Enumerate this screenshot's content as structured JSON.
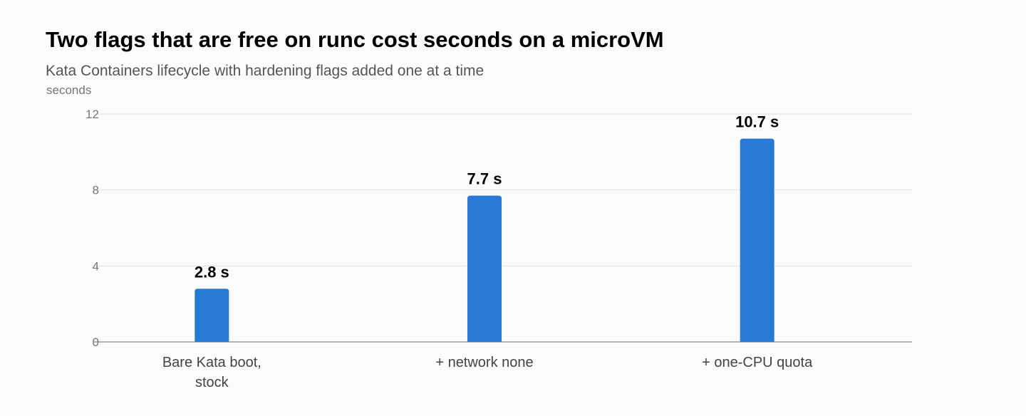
{
  "chart_data": {
    "type": "bar",
    "title": "Two flags that are free on runc cost seconds on a microVM",
    "subtitle": "Kata Containers lifecycle with hardening flags added one at a time",
    "ylabel": "seconds",
    "xlabel": "",
    "categories": [
      [
        "Bare Kata boot,",
        "stock"
      ],
      [
        "+ network none"
      ],
      [
        "+ one-CPU quota"
      ]
    ],
    "values": [
      2.8,
      7.7,
      10.7
    ],
    "data_labels": [
      "2.8 s",
      "7.7 s",
      "10.7 s"
    ],
    "ylim": [
      0,
      12
    ],
    "yticks": [
      "0",
      "4",
      "8",
      "12"
    ],
    "grid": true,
    "bar_color": "#2878d6"
  }
}
